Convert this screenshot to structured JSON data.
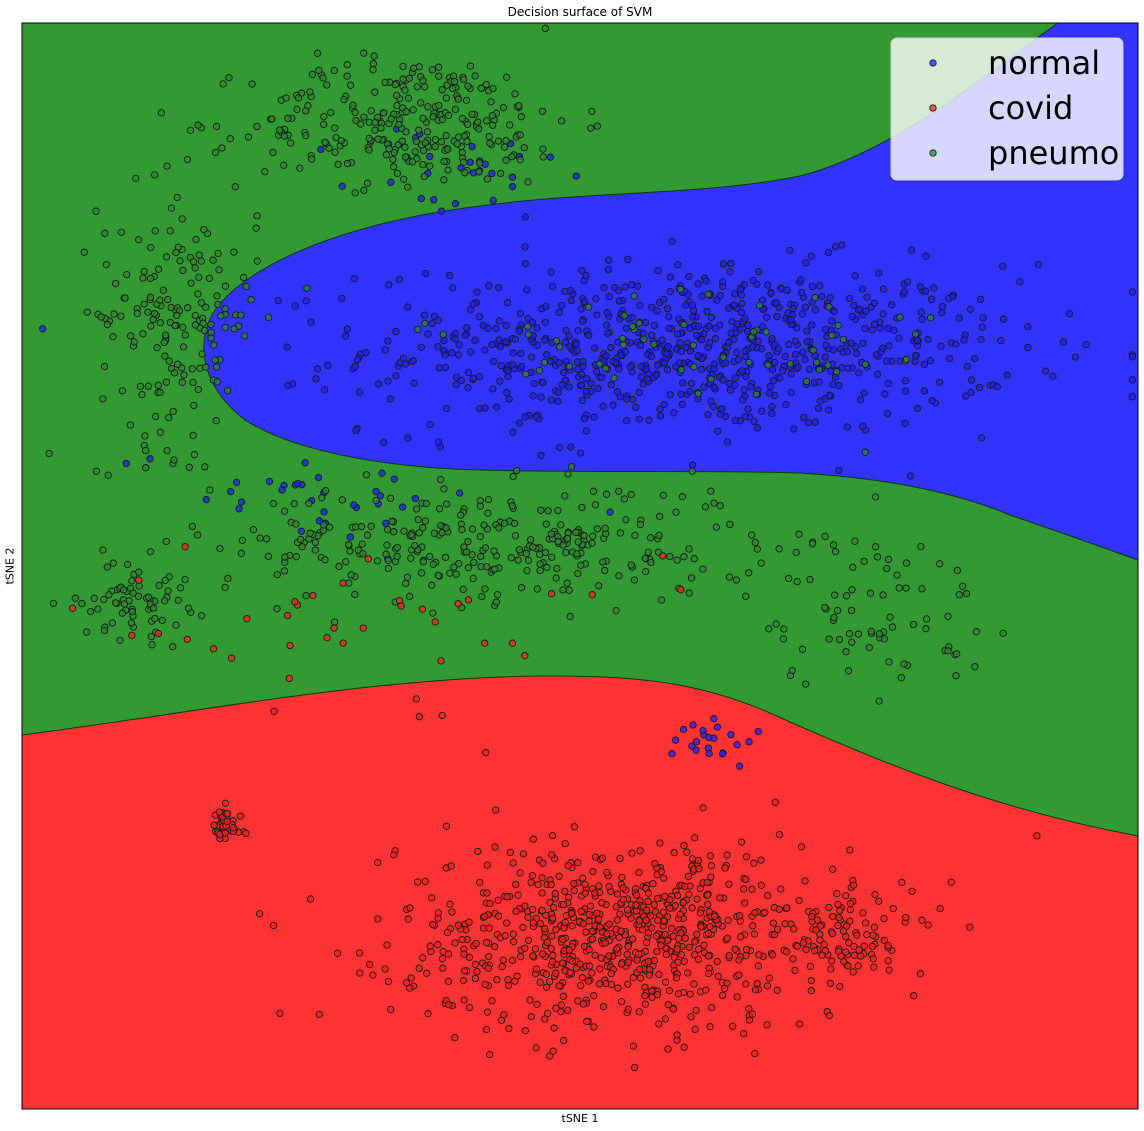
{
  "chart_data": {
    "type": "scatter",
    "title": "Decision surface of SVM",
    "xlabel": "tSNE 1",
    "ylabel": "tSNE 2",
    "xlim": [
      0,
      100
    ],
    "ylim": [
      0,
      100
    ],
    "xticks": [],
    "yticks": [],
    "grid": false,
    "legend_position": "top-right",
    "background": "decision surface: normal region (blue) in upper-middle extending to right edge, pneumo region (green) surrounding it, covid region (red) across the bottom",
    "series": [
      {
        "name": "normal",
        "color": "#1f1fff",
        "region_color": "#3333ff",
        "clusters": [
          {
            "center": [
              60,
              70
            ],
            "spread": [
              24,
              6.5
            ],
            "count": 800
          },
          {
            "center": [
              39,
              86
            ],
            "spread": [
              8,
              4
            ],
            "count": 30
          },
          {
            "center": [
              25,
              57
            ],
            "spread": [
              14,
              4
            ],
            "count": 35
          },
          {
            "center": [
              62,
              34
            ],
            "spread": [
              3,
              2
            ],
            "count": 22
          }
        ]
      },
      {
        "name": "covid",
        "color": "#ff2020",
        "region_color": "#ff3333",
        "clusters": [
          {
            "center": [
              54,
              16
            ],
            "spread": [
              17,
              7
            ],
            "count": 780
          },
          {
            "center": [
              18,
              26
            ],
            "spread": [
              1.4,
              1.4
            ],
            "count": 40
          },
          {
            "center": [
              74,
              16
            ],
            "spread": [
              5,
              3
            ],
            "count": 70
          },
          {
            "center": [
              30,
              44
            ],
            "spread": [
              22,
              6
            ],
            "count": 40
          }
        ]
      },
      {
        "name": "pneumo",
        "color": "#2e8b2e",
        "region_color": "#339933",
        "clusters": [
          {
            "center": [
              35,
              91
            ],
            "spread": [
              12,
              5
            ],
            "count": 280
          },
          {
            "center": [
              14,
              73
            ],
            "spread": [
              6,
              10
            ],
            "count": 180
          },
          {
            "center": [
              42,
              52
            ],
            "spread": [
              20,
              4.5
            ],
            "count": 320
          },
          {
            "center": [
              10,
              47
            ],
            "spread": [
              4,
              3
            ],
            "count": 70
          },
          {
            "center": [
              76,
              46
            ],
            "spread": [
              9,
              6
            ],
            "count": 80
          },
          {
            "center": [
              60,
              70
            ],
            "spread": [
              20,
              6
            ],
            "count": 60
          }
        ]
      }
    ]
  }
}
